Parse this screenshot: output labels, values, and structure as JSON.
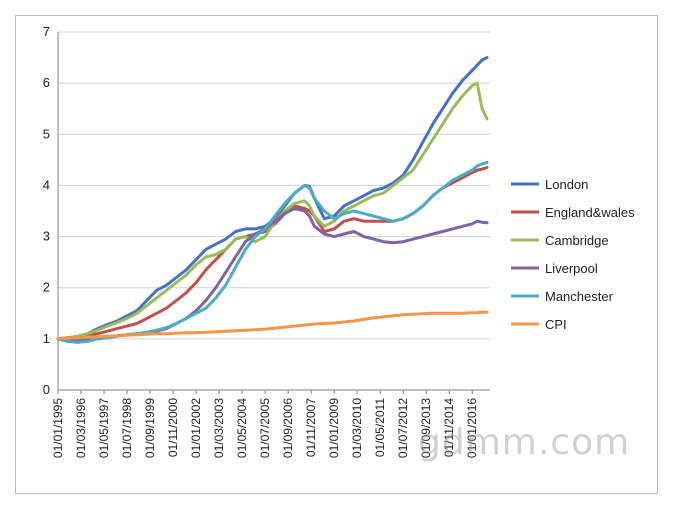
{
  "chart_data": {
    "type": "line",
    "ylim": [
      0,
      7
    ],
    "yticks": [
      0,
      1,
      2,
      3,
      4,
      5,
      6,
      7
    ],
    "grid": true,
    "legend_position": "right",
    "x_tick_labels": [
      "01/01/1995",
      "01/03/1996",
      "01/05/1997",
      "01/07/1998",
      "01/09/1999",
      "01/11/2000",
      "01/01/2002",
      "01/03/2003",
      "01/05/2004",
      "01/07/2005",
      "01/09/2006",
      "01/11/2007",
      "01/01/2009",
      "01/03/2010",
      "01/05/2011",
      "01/07/2012",
      "01/09/2013",
      "01/11/2014",
      "01/01/2016"
    ],
    "x_years": [
      1995.0,
      1995.5,
      1996.0,
      1996.5,
      1997.0,
      1997.5,
      1998.0,
      1998.5,
      1999.0,
      1999.5,
      2000.0,
      2000.5,
      2001.0,
      2001.5,
      2002.0,
      2002.5,
      2003.0,
      2003.5,
      2004.0,
      2004.5,
      2005.0,
      2005.5,
      2006.0,
      2006.5,
      2007.0,
      2007.5,
      2007.75,
      2008.0,
      2008.5,
      2009.0,
      2009.5,
      2010.0,
      2010.5,
      2011.0,
      2011.5,
      2012.0,
      2012.5,
      2013.0,
      2013.5,
      2014.0,
      2014.5,
      2015.0,
      2015.5,
      2016.0,
      2016.25,
      2016.5,
      2016.75
    ],
    "series": [
      {
        "name": "London",
        "color": "#4472c4",
        "values": [
          1.0,
          1.02,
          1.05,
          1.1,
          1.2,
          1.28,
          1.35,
          1.45,
          1.55,
          1.75,
          1.95,
          2.05,
          2.2,
          2.35,
          2.55,
          2.75,
          2.85,
          2.95,
          3.1,
          3.15,
          3.15,
          3.2,
          3.35,
          3.6,
          3.85,
          4.0,
          3.98,
          3.75,
          3.35,
          3.4,
          3.6,
          3.7,
          3.8,
          3.9,
          3.95,
          4.05,
          4.2,
          4.5,
          4.85,
          5.2,
          5.5,
          5.8,
          6.05,
          6.25,
          6.35,
          6.45,
          6.5
        ]
      },
      {
        "name": "England&wales",
        "color": "#c0504d",
        "values": [
          1.0,
          1.02,
          1.04,
          1.07,
          1.1,
          1.15,
          1.2,
          1.25,
          1.3,
          1.4,
          1.5,
          1.6,
          1.75,
          1.9,
          2.1,
          2.35,
          2.55,
          2.75,
          2.95,
          3.0,
          3.05,
          3.1,
          3.25,
          3.45,
          3.6,
          3.55,
          3.5,
          3.4,
          3.1,
          3.15,
          3.3,
          3.35,
          3.3,
          3.3,
          3.3,
          3.3,
          3.35,
          3.45,
          3.6,
          3.8,
          3.95,
          4.05,
          4.15,
          4.25,
          4.3,
          4.32,
          4.35
        ]
      },
      {
        "name": "Cambridge",
        "color": "#9bbb59",
        "values": [
          1.0,
          1.02,
          1.05,
          1.1,
          1.17,
          1.25,
          1.32,
          1.4,
          1.5,
          1.65,
          1.8,
          1.95,
          2.1,
          2.25,
          2.45,
          2.6,
          2.65,
          2.75,
          2.95,
          3.0,
          2.9,
          3.0,
          3.3,
          3.5,
          3.65,
          3.7,
          3.6,
          3.4,
          3.2,
          3.3,
          3.5,
          3.6,
          3.7,
          3.8,
          3.85,
          4.0,
          4.15,
          4.3,
          4.6,
          4.9,
          5.2,
          5.5,
          5.75,
          5.95,
          6.0,
          5.5,
          5.3
        ]
      },
      {
        "name": "Liverpool",
        "color": "#8064a2",
        "values": [
          1.0,
          0.98,
          0.97,
          0.98,
          1.0,
          1.03,
          1.06,
          1.08,
          1.1,
          1.12,
          1.15,
          1.2,
          1.3,
          1.4,
          1.55,
          1.75,
          2.0,
          2.3,
          2.6,
          2.9,
          3.05,
          3.15,
          3.3,
          3.45,
          3.55,
          3.5,
          3.4,
          3.2,
          3.05,
          3.0,
          3.05,
          3.1,
          3.0,
          2.95,
          2.9,
          2.88,
          2.9,
          2.95,
          3.0,
          3.05,
          3.1,
          3.15,
          3.2,
          3.25,
          3.3,
          3.28,
          3.27
        ]
      },
      {
        "name": "Manchester",
        "color": "#4bacc6",
        "values": [
          1.0,
          0.95,
          0.93,
          0.95,
          1.0,
          1.02,
          1.05,
          1.08,
          1.1,
          1.13,
          1.17,
          1.22,
          1.3,
          1.4,
          1.5,
          1.6,
          1.8,
          2.05,
          2.4,
          2.75,
          3.0,
          3.15,
          3.4,
          3.65,
          3.85,
          4.0,
          3.95,
          3.75,
          3.5,
          3.35,
          3.45,
          3.5,
          3.45,
          3.4,
          3.35,
          3.3,
          3.35,
          3.45,
          3.6,
          3.8,
          3.95,
          4.1,
          4.2,
          4.3,
          4.38,
          4.42,
          4.45
        ]
      },
      {
        "name": "CPI",
        "color": "#f79646",
        "values": [
          1.0,
          1.01,
          1.02,
          1.03,
          1.04,
          1.05,
          1.06,
          1.07,
          1.08,
          1.09,
          1.1,
          1.1,
          1.11,
          1.12,
          1.12,
          1.13,
          1.14,
          1.15,
          1.16,
          1.17,
          1.18,
          1.19,
          1.21,
          1.23,
          1.25,
          1.27,
          1.28,
          1.29,
          1.3,
          1.31,
          1.33,
          1.35,
          1.38,
          1.41,
          1.43,
          1.45,
          1.47,
          1.48,
          1.49,
          1.5,
          1.5,
          1.5,
          1.5,
          1.51,
          1.51,
          1.52,
          1.52
        ]
      }
    ]
  },
  "watermark": "gdmm.com"
}
